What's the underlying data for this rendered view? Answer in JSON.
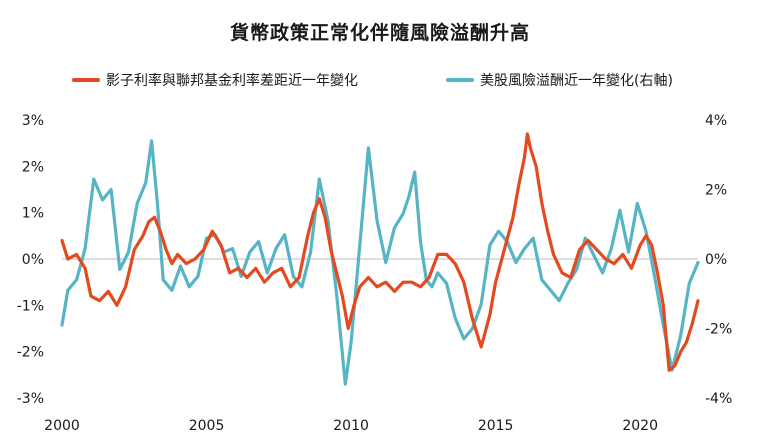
{
  "chart_data": {
    "type": "line",
    "title": "貨幣政策正常化伴隨風險溢酬升高",
    "x_ticks": [
      "2000",
      "2005",
      "2010",
      "2015",
      "2020"
    ],
    "x_range": [
      2000,
      2022
    ],
    "y_left": {
      "ticks": [
        "3%",
        "2%",
        "1%",
        "0%",
        "-1%",
        "-2%",
        "-3%"
      ],
      "range": [
        -3,
        3
      ]
    },
    "y_right": {
      "ticks": [
        "4%",
        "2%",
        "0%",
        "-2%",
        "-4%"
      ],
      "range": [
        -4,
        4
      ]
    },
    "grid": false,
    "legend_position": "top",
    "series": [
      {
        "name": "影子利率與聯邦基金利率差距近一年變化",
        "axis": "left",
        "color": "#e4491f",
        "x": [
          2000.0,
          2000.2,
          2000.5,
          2000.8,
          2001.0,
          2001.3,
          2001.6,
          2001.9,
          2002.2,
          2002.5,
          2002.8,
          2003.0,
          2003.2,
          2003.4,
          2003.6,
          2003.8,
          2004.0,
          2004.3,
          2004.6,
          2004.9,
          2005.2,
          2005.5,
          2005.8,
          2006.1,
          2006.4,
          2006.7,
          2007.0,
          2007.3,
          2007.6,
          2007.9,
          2008.2,
          2008.5,
          2008.7,
          2008.9,
          2009.1,
          2009.3,
          2009.5,
          2009.7,
          2009.9,
          2010.1,
          2010.3,
          2010.6,
          2010.9,
          2011.2,
          2011.5,
          2011.8,
          2012.1,
          2012.4,
          2012.7,
          2013.0,
          2013.3,
          2013.6,
          2013.9,
          2014.2,
          2014.5,
          2014.8,
          2015.0,
          2015.3,
          2015.6,
          2015.8,
          2016.0,
          2016.1,
          2016.2,
          2016.4,
          2016.6,
          2016.8,
          2017.0,
          2017.3,
          2017.6,
          2017.9,
          2018.2,
          2018.5,
          2018.8,
          2019.1,
          2019.4,
          2019.7,
          2020.0,
          2020.2,
          2020.4,
          2020.6,
          2020.8,
          2021.0,
          2021.2,
          2021.4,
          2021.6,
          2021.8,
          2022.0
        ],
        "values": [
          0.4,
          0.0,
          0.1,
          -0.2,
          -0.8,
          -0.9,
          -0.7,
          -1.0,
          -0.6,
          0.2,
          0.5,
          0.8,
          0.9,
          0.6,
          0.2,
          -0.1,
          0.1,
          -0.1,
          0.0,
          0.2,
          0.6,
          0.3,
          -0.3,
          -0.2,
          -0.4,
          -0.2,
          -0.5,
          -0.3,
          -0.2,
          -0.6,
          -0.4,
          0.5,
          1.0,
          1.3,
          0.9,
          0.2,
          -0.3,
          -0.8,
          -1.5,
          -1.0,
          -0.6,
          -0.4,
          -0.6,
          -0.5,
          -0.7,
          -0.5,
          -0.5,
          -0.6,
          -0.4,
          0.1,
          0.1,
          -0.1,
          -0.5,
          -1.3,
          -1.9,
          -1.2,
          -0.5,
          0.2,
          0.9,
          1.6,
          2.2,
          2.7,
          2.4,
          2.0,
          1.2,
          0.6,
          0.1,
          -0.3,
          -0.4,
          0.2,
          0.4,
          0.2,
          0.0,
          -0.1,
          0.1,
          -0.2,
          0.3,
          0.5,
          0.3,
          -0.3,
          -1.0,
          -2.4,
          -2.3,
          -2.0,
          -1.8,
          -1.4,
          -0.9
        ]
      },
      {
        "name": "美股風險溢酬近一年變化(右軸)",
        "axis": "right",
        "color": "#56b4c4",
        "x": [
          2000.0,
          2000.2,
          2000.5,
          2000.8,
          2001.1,
          2001.4,
          2001.7,
          2002.0,
          2002.3,
          2002.6,
          2002.9,
          2003.1,
          2003.3,
          2003.5,
          2003.8,
          2004.1,
          2004.4,
          2004.7,
          2005.0,
          2005.3,
          2005.6,
          2005.9,
          2006.2,
          2006.5,
          2006.8,
          2007.1,
          2007.4,
          2007.7,
          2008.0,
          2008.3,
          2008.6,
          2008.9,
          2009.2,
          2009.5,
          2009.8,
          2010.0,
          2010.3,
          2010.6,
          2010.9,
          2011.2,
          2011.5,
          2011.8,
          2012.0,
          2012.2,
          2012.4,
          2012.6,
          2012.8,
          2013.0,
          2013.3,
          2013.6,
          2013.9,
          2014.2,
          2014.5,
          2014.8,
          2015.1,
          2015.4,
          2015.7,
          2016.0,
          2016.3,
          2016.6,
          2016.9,
          2017.2,
          2017.5,
          2017.8,
          2018.1,
          2018.4,
          2018.7,
          2019.0,
          2019.3,
          2019.6,
          2019.9,
          2020.2,
          2020.5,
          2020.8,
          2021.1,
          2021.4,
          2021.7,
          2022.0
        ],
        "values": [
          -1.9,
          -0.9,
          -0.6,
          0.3,
          2.3,
          1.7,
          2.0,
          -0.3,
          0.2,
          1.6,
          2.2,
          3.4,
          1.6,
          -0.6,
          -0.9,
          -0.2,
          -0.8,
          -0.5,
          0.6,
          0.7,
          0.2,
          0.3,
          -0.5,
          0.2,
          0.5,
          -0.4,
          0.3,
          0.7,
          -0.5,
          -0.8,
          0.2,
          2.3,
          1.1,
          -1.0,
          -3.6,
          -2.4,
          0.4,
          3.2,
          1.1,
          -0.1,
          0.9,
          1.3,
          1.8,
          2.5,
          0.5,
          -0.6,
          -0.8,
          -0.4,
          -0.7,
          -1.7,
          -2.3,
          -2.0,
          -1.3,
          0.4,
          0.8,
          0.5,
          -0.1,
          0.3,
          0.6,
          -0.6,
          -0.9,
          -1.2,
          -0.7,
          -0.3,
          0.6,
          0.1,
          -0.4,
          0.3,
          1.4,
          0.2,
          1.6,
          0.8,
          -0.5,
          -1.9,
          -3.2,
          -2.2,
          -0.7,
          -0.1
        ]
      }
    ]
  }
}
